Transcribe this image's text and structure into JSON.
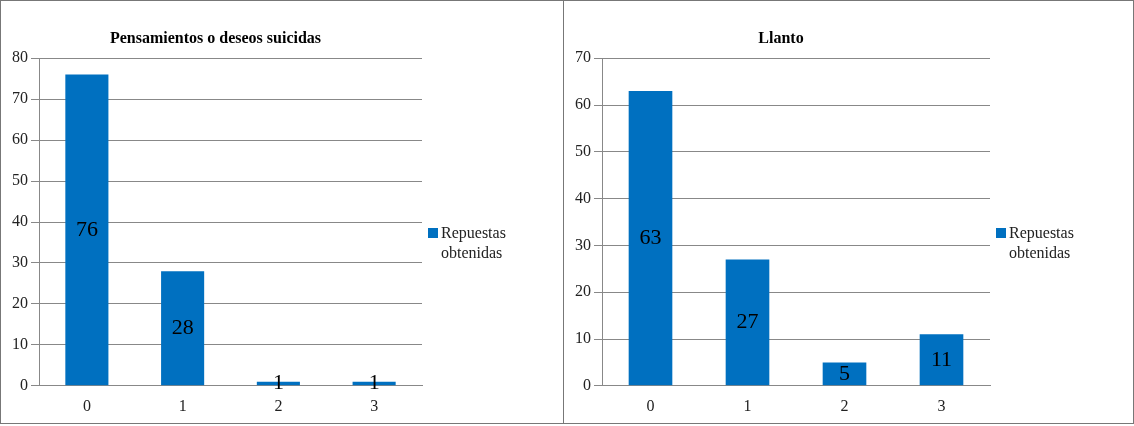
{
  "chart_data": [
    {
      "type": "bar",
      "title": "Pensamientos o deseos suicidas",
      "categories": [
        "0",
        "1",
        "2",
        "3"
      ],
      "series": [
        {
          "name": "Repuestas obtenidas",
          "color": "#0070c0",
          "values": [
            76,
            28,
            1,
            1
          ]
        }
      ],
      "ylim": [
        0,
        80
      ],
      "yticks": [
        0,
        10,
        20,
        30,
        40,
        50,
        60,
        70,
        80
      ],
      "grid": "y",
      "legend": "right",
      "data_labels": true
    },
    {
      "type": "bar",
      "title": "Llanto",
      "categories": [
        "0",
        "1",
        "2",
        "3"
      ],
      "series": [
        {
          "name": "Repuestas obtenidas",
          "color": "#0070c0",
          "values": [
            63,
            27,
            5,
            11
          ]
        }
      ],
      "ylim": [
        0,
        70
      ],
      "yticks": [
        0,
        10,
        20,
        30,
        40,
        50,
        60,
        70
      ],
      "grid": "y",
      "legend": "right",
      "data_labels": true
    }
  ]
}
